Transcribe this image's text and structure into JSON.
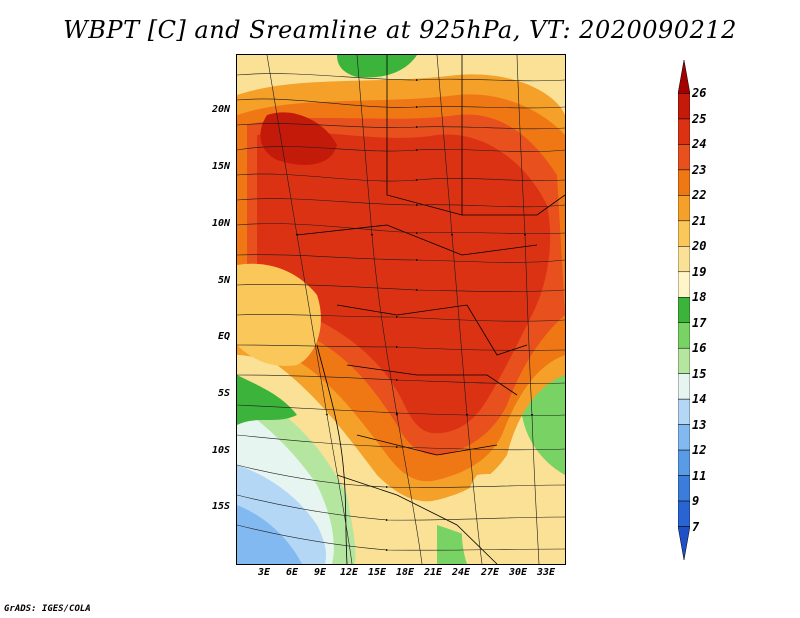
{
  "title": "WBPT [C] and Sreamline at 925hPa, VT: 2020090212",
  "footer": "GrADS: IGES/COLA",
  "map": {
    "lat_labels": [
      "20N",
      "15N",
      "10N",
      "5N",
      "EQ",
      "5S",
      "10S",
      "15S"
    ],
    "lon_labels": [
      "3E",
      "6E",
      "9E",
      "12E",
      "15E",
      "18E",
      "21E",
      "24E",
      "27E",
      "30E",
      "33E"
    ],
    "field": "Wet-bulb potential temperature",
    "units": "C",
    "level": "925hPa",
    "valid_time": "2020090212"
  },
  "colorbar": {
    "labels": [
      "26",
      "25",
      "24",
      "23",
      "22",
      "21",
      "20",
      "19",
      "18",
      "17",
      "16",
      "15",
      "14",
      "13",
      "12",
      "11",
      "9",
      "7"
    ],
    "colors": [
      "#a50000",
      "#c41a0a",
      "#dc3214",
      "#e8501e",
      "#f07814",
      "#f5a028",
      "#fac85a",
      "#fae196",
      "#fff5c8",
      "#3cb43c",
      "#78d264",
      "#b4e6a0",
      "#e6f5f0",
      "#b4d7f5",
      "#82b9f0",
      "#5a9be6",
      "#3c7ddc",
      "#2864d2",
      "#1e50c8"
    ]
  }
}
